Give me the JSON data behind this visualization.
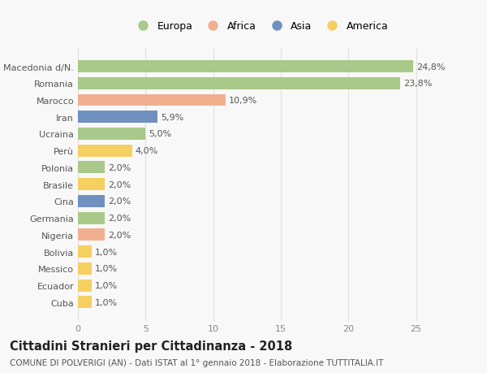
{
  "countries": [
    "Macedonia d/N.",
    "Romania",
    "Marocco",
    "Iran",
    "Ucraina",
    "Perù",
    "Polonia",
    "Brasile",
    "Cina",
    "Germania",
    "Nigeria",
    "Bolivia",
    "Messico",
    "Ecuador",
    "Cuba"
  ],
  "values": [
    24.8,
    23.8,
    10.9,
    5.9,
    5.0,
    4.0,
    2.0,
    2.0,
    2.0,
    2.0,
    2.0,
    1.0,
    1.0,
    1.0,
    1.0
  ],
  "labels": [
    "24,8%",
    "23,8%",
    "10,9%",
    "5,9%",
    "5,0%",
    "4,0%",
    "2,0%",
    "2,0%",
    "2,0%",
    "2,0%",
    "2,0%",
    "1,0%",
    "1,0%",
    "1,0%",
    "1,0%"
  ],
  "continents": [
    "Europa",
    "Europa",
    "Africa",
    "Asia",
    "Europa",
    "America",
    "Europa",
    "America",
    "Asia",
    "Europa",
    "Africa",
    "America",
    "America",
    "America",
    "America"
  ],
  "continent_colors": {
    "Europa": "#a8c98a",
    "Africa": "#f0b090",
    "Asia": "#7090c0",
    "America": "#f5d060"
  },
  "legend_order": [
    "Europa",
    "Africa",
    "Asia",
    "America"
  ],
  "title_line1": "Cittadini Stranieri per Cittadinanza - 2018",
  "title_line2": "COMUNE DI POLVERIGI (AN) - Dati ISTAT al 1° gennaio 2018 - Elaborazione TUTTITALIA.IT",
  "xlim": [
    0,
    27
  ],
  "xticks": [
    0,
    5,
    10,
    15,
    20,
    25
  ],
  "background_color": "#f8f8f8",
  "grid_color": "#e0e0e0",
  "bar_height": 0.72,
  "label_fontsize": 8,
  "ylabel_fontsize": 8,
  "title_fontsize": 10.5,
  "subtitle_fontsize": 7.5
}
